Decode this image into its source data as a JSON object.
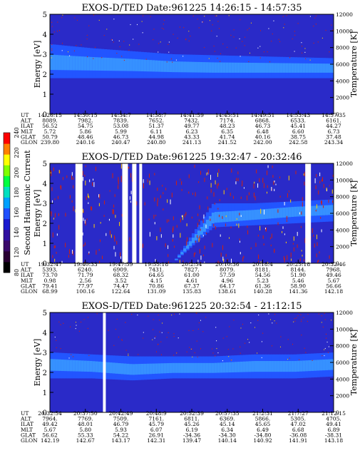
{
  "chart_data": [
    {
      "type": "heatmap",
      "title": "EXOS-D/TED   Date:961225   14:26:15 - 14:57:35",
      "ylabel": "Energy [eV]",
      "y2label": "Temperature [K]",
      "ylim": [
        0,
        5
      ],
      "y2lim": [
        0,
        12000
      ],
      "yticks": [
        "0",
        "1",
        "2",
        "3",
        "4",
        "5"
      ],
      "y2ticks": [
        "0",
        "2000",
        "4000",
        "6000",
        "8000",
        "10000",
        "12000"
      ],
      "band": {
        "center_ev": [
          2.55,
          2.5,
          2.45,
          2.35,
          2.3,
          2.3,
          2.3,
          2.3
        ],
        "upper_ev": [
          3.5,
          3.3,
          3.15,
          3.0,
          2.95,
          2.9,
          2.85,
          2.8
        ],
        "lower_ev": [
          1.8,
          1.8,
          1.8,
          1.8,
          1.8,
          1.8,
          1.8,
          1.8
        ]
      },
      "gaps": [],
      "table": {
        "row_labels": [
          "UT",
          "ALT",
          "ILAT",
          "MLT",
          "GLAT",
          "GLON"
        ],
        "columns": [
          [
            "14:26:15",
            "8089.",
            "56.52",
            "5.72",
            "50.79",
            "239.80"
          ],
          [
            "14:30:15",
            "7982.",
            "54.75",
            "5.86",
            "48.46",
            "240.16"
          ],
          [
            "14:34:7",
            "7839.",
            "53.08",
            "5.99",
            "46.73",
            "240.47"
          ],
          [
            "14:38:7",
            "7652.",
            "51.37",
            "6.11",
            "44.98",
            "240.80"
          ],
          [
            "14:41:59",
            "7432.",
            "49.77",
            "6.23",
            "43.33",
            "241.13"
          ],
          [
            "14:45:51",
            "7174.",
            "48.23",
            "6.35",
            "41.74",
            "241.52"
          ],
          [
            "14:49:51",
            "6868.",
            "46.73",
            "6.48",
            "40.16",
            "242.00"
          ],
          [
            "14:53:43",
            "6533.",
            "45.41",
            "6.60",
            "38.75",
            "242.58"
          ],
          [
            "14:57:35",
            "6161.",
            "44.27",
            "6.73",
            "37.48",
            "243.34"
          ]
        ]
      }
    },
    {
      "type": "heatmap",
      "title": "EXOS-D/TED   Date:961225   19:32:47 - 20:32:46",
      "ylabel": "Energy [eV]",
      "y2label": "Temperature [K]",
      "ylim": [
        0,
        5
      ],
      "y2lim": [
        0,
        12000
      ],
      "yticks": [
        "0",
        "1",
        "2",
        "3",
        "4",
        "5"
      ],
      "y2ticks": [
        "0",
        "2000",
        "4000",
        "6000",
        "8000",
        "10000",
        "12000"
      ],
      "band": {
        "center_ev": [
          0,
          0,
          0,
          0,
          2.2,
          2.4,
          2.6,
          2.7
        ],
        "upper_ev": [
          0,
          0,
          0,
          0,
          3.0,
          3.0,
          3.1,
          3.2
        ],
        "lower_ev": [
          0,
          0,
          0,
          0,
          1.8,
          1.9,
          2.0,
          2.1
        ]
      },
      "gaps": [
        {
          "from": 0.09,
          "to": 0.115
        },
        {
          "from": 0.255,
          "to": 0.275
        },
        {
          "from": 0.29,
          "to": 0.305
        },
        {
          "from": 0.315,
          "to": 0.325
        },
        {
          "from": 0.9,
          "to": 0.92
        }
      ],
      "table": {
        "row_labels": [
          "UT",
          "ALT",
          "ILAT",
          "MLT",
          "GLAT",
          "GLON"
        ],
        "columns": [
          [
            "19:32:47",
            "5393.",
            "73.70",
            "0.98",
            "79.41",
            "68.99"
          ],
          [
            "19:40:33",
            "6240.",
            "71.79",
            "2.56",
            "77.97",
            "100.16"
          ],
          [
            "19:47:59",
            "6909.",
            "68.32",
            "3.52",
            "74.47",
            "122.64"
          ],
          [
            "19:55:18",
            "7431.",
            "64.65",
            "4.15",
            "70.86",
            "131.09"
          ],
          [
            "20:2:54",
            "7827.",
            "61.00",
            "4.61",
            "67.37",
            "135.83"
          ],
          [
            "20:10:36",
            "8079.",
            "57.59",
            "4.96",
            "64.17",
            "138.61"
          ],
          [
            "20:18:4",
            "8181.",
            "54.56",
            "5.23",
            "61.36",
            "140.28"
          ],
          [
            "20:25:18",
            "8144.",
            "51.90",
            "5.46",
            "58.90",
            "141.36"
          ],
          [
            "20:32:46",
            "7968.",
            "49.46",
            "5.67",
            "56.66",
            "142.18"
          ]
        ]
      }
    },
    {
      "type": "heatmap",
      "title": "EXOS-D/TED   Date:961225   20:32:54 - 21:12:15",
      "ylabel": "Energy [eV]",
      "y2label": "Temperature [K]",
      "ylim": [
        0,
        5
      ],
      "y2lim": [
        0,
        12000
      ],
      "yticks": [
        "0",
        "1",
        "2",
        "3",
        "4",
        "5"
      ],
      "y2ticks": [
        "0",
        "2000",
        "4000",
        "6000",
        "8000",
        "10000",
        "12000"
      ],
      "band": {
        "center_ev": [
          2.4,
          2.3,
          2.1,
          2.2,
          2.2,
          2.3,
          2.3,
          2.4
        ],
        "upper_ev": [
          3.0,
          2.9,
          2.8,
          2.8,
          2.8,
          2.9,
          2.9,
          3.0
        ],
        "lower_ev": [
          1.7,
          1.7,
          1.6,
          1.7,
          1.7,
          1.7,
          1.7,
          1.8
        ]
      },
      "gaps": [
        {
          "from": 0.187,
          "to": 0.197
        }
      ],
      "table": {
        "row_labels": [
          "UT",
          "ALT",
          "ILAT",
          "MLT",
          "GLAT",
          "GLON"
        ],
        "columns": [
          [
            "20:32:54",
            "7964.",
            "49.42",
            "5.67",
            "56.62",
            "142.19"
          ],
          [
            "20:37:50",
            "7769.",
            "48.01",
            "5.80",
            "55.33",
            "142.67"
          ],
          [
            "20:42:49",
            "7509.",
            "46.79",
            "5.93",
            "54.22",
            "143.17"
          ],
          [
            "20:48:9",
            "7161.",
            "45.79",
            "6.07",
            "26.91",
            "142.31"
          ],
          [
            "20:52:39",
            "6811.",
            "45.26",
            "6.19",
            "-34.36",
            "139.47"
          ],
          [
            "20:57:35",
            "6369.",
            "45.14",
            "6.34",
            "-34.30",
            "140.14"
          ],
          [
            "21:2:31",
            "5866.",
            "45.65",
            "6.49",
            "-34.80",
            "140.92"
          ],
          [
            "21:7:27",
            "5305.",
            "47.02",
            "6.68",
            "-36.08",
            "141.91"
          ],
          [
            "21:12:15",
            "4705.",
            "49.41",
            "6.89",
            "-38.31",
            "143.18"
          ]
        ]
      }
    }
  ],
  "colorbar": {
    "label": "Second Harmonic Current",
    "ticks": [
      "80",
      "120",
      "140",
      "160",
      "180",
      "200",
      "220",
      "240"
    ],
    "colors": [
      "#000000",
      "#2a0033",
      "#3a0a6a",
      "#3010a0",
      "#1a1ad0",
      "#2050ff",
      "#00a0ff",
      "#00e0c0",
      "#00ff40",
      "#80ff00",
      "#ffff00",
      "#ff8000",
      "#ff0000"
    ]
  },
  "colors": {
    "background": "#2a2ac8",
    "band_inner": "#2255ff",
    "band_core": "#3a9cff",
    "speck": "#d02010",
    "gap": "#ffffff"
  }
}
